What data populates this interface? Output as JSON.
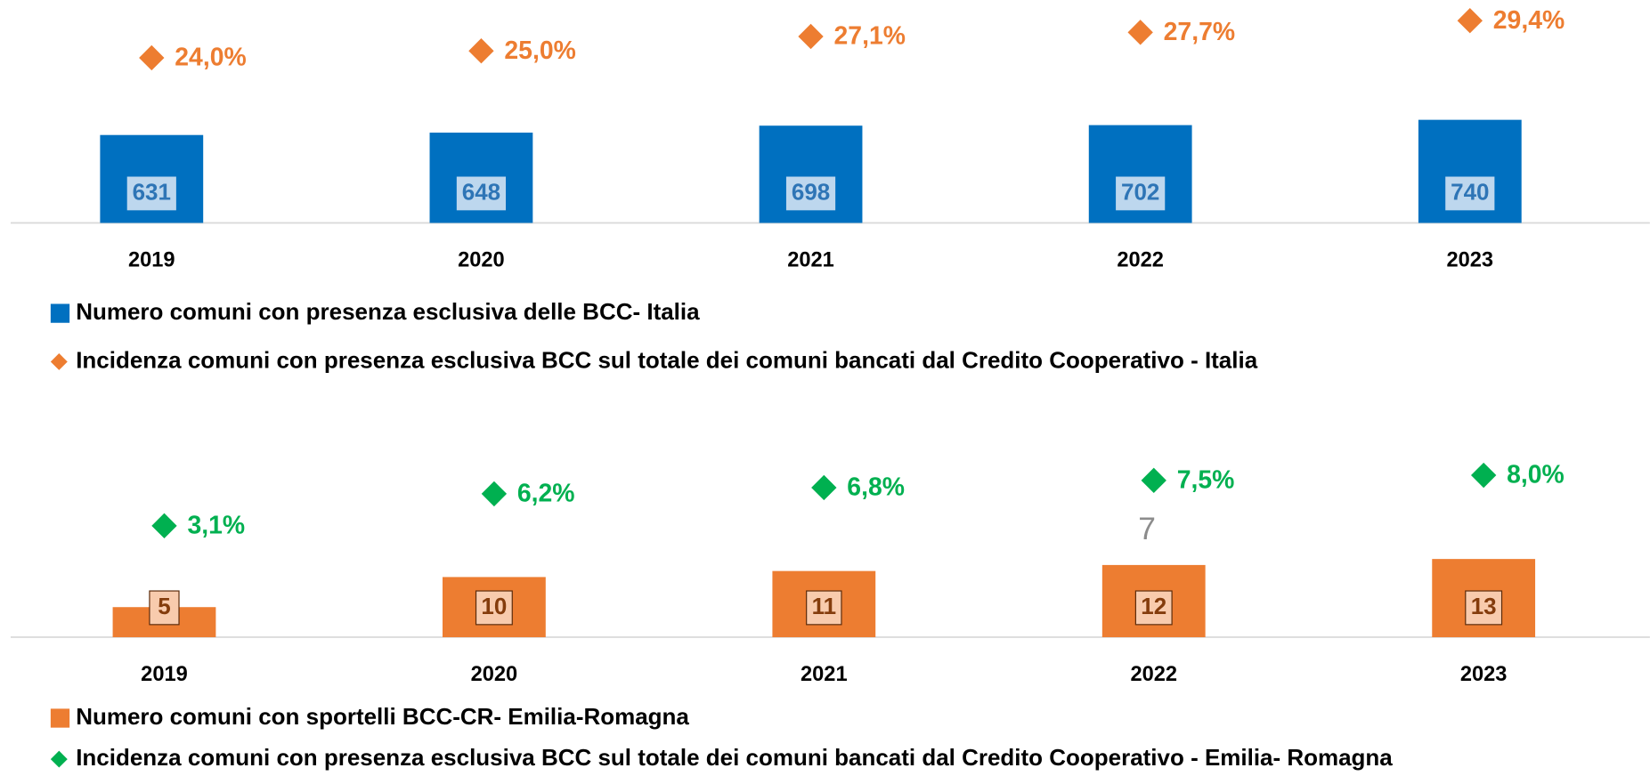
{
  "chart_data": [
    {
      "type": "bar",
      "categories": [
        "2019",
        "2020",
        "2021",
        "2022",
        "2023"
      ],
      "ylim": [
        0,
        1600
      ],
      "y2lim": [
        0,
        32.4
      ],
      "series": [
        {
          "name": "Numero comuni con presenza esclusiva delle BCC- Italia",
          "color": "#0070c0",
          "values": [
            631,
            648,
            698,
            702,
            740
          ]
        },
        {
          "name": "Incidenza comuni con presenza esclusiva BCC sul totale dei comuni bancati  dal Credito Cooperativo - Italia",
          "color": "#ed7d31",
          "axis": "y2",
          "values": [
            24.0,
            25.0,
            27.1,
            27.7,
            29.4
          ],
          "value_labels": [
            "24,0%",
            "25,0%",
            "27,1%",
            "27,7%",
            "29,4%"
          ]
        }
      ]
    },
    {
      "type": "bar",
      "categories": [
        "2019",
        "2020",
        "2021",
        "2022",
        "2023"
      ],
      "ylim": [
        0,
        36
      ],
      "y2lim": [
        -7.7,
        13.3
      ],
      "series": [
        {
          "name": "Numero comuni con sportelli BCC-CR- Emilia-Romagna",
          "color": "#ed7d31",
          "values": [
            5,
            10,
            11,
            12,
            13
          ]
        },
        {
          "name": "Incidenza comuni con presenza esclusiva BCC sul totale dei comuni bancati  dal Credito Cooperativo - Emilia- Romagna",
          "color": "#00b050",
          "axis": "y2",
          "values": [
            3.1,
            6.2,
            6.8,
            7.5,
            8.0
          ],
          "value_labels": [
            "3,1%",
            "6,2%",
            "6,8%",
            "7,5%",
            "8,0%"
          ]
        }
      ]
    }
  ],
  "page_number": "7"
}
